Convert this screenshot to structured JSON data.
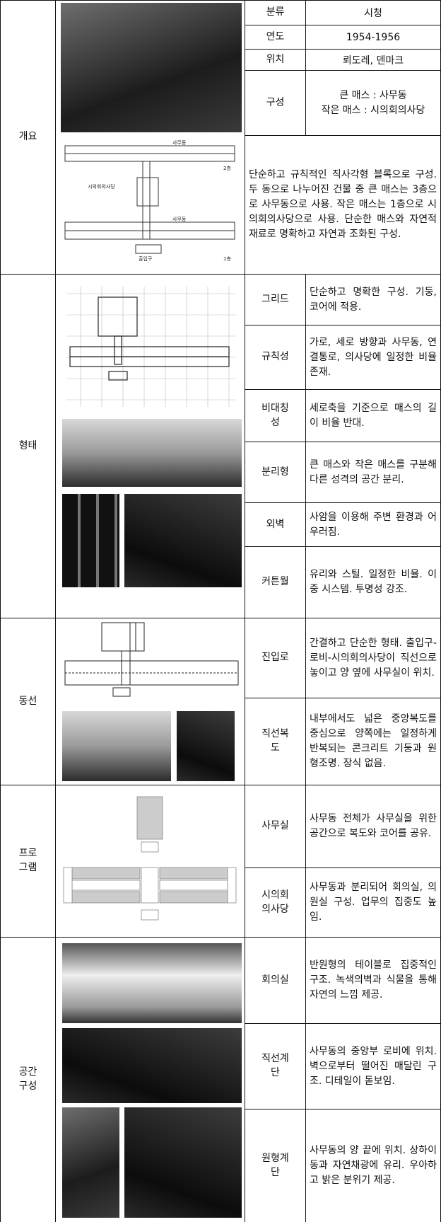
{
  "overview": {
    "section": "개요",
    "rows": [
      {
        "label": "분류",
        "value": "시청"
      },
      {
        "label": "연도",
        "value": "1954-1956"
      },
      {
        "label": "위치",
        "value": "뢰도레, 덴마크"
      },
      {
        "label": "구성",
        "value": [
          "큰 매스 : 사무동",
          "작은 매스 : 시의회의사당"
        ]
      }
    ],
    "plan_labels": [
      "사무동",
      "시의회의사당",
      "2층",
      "사무동",
      "출입구",
      "1층"
    ],
    "description": "단순하고 규칙적인 직사각형 블록으로 구성. 두 동으로 나누어진 건물 중 큰 매스는 3층으로 사무동으로 사용. 작은 매스는 1층으로 시의회의사당으로 사용. 단순한 매스와 자연적 재료로 명확하고 자연과 조화된 구성."
  },
  "sections": [
    {
      "title": "형태",
      "rows": [
        {
          "label": "그리드",
          "text": "단순하고 명확한 구성. 기둥, 코어에 적용."
        },
        {
          "label": "규칙성",
          "text": "가로, 세로 방향과 사무동, 연결통로, 의사당에 일정한 비율존재."
        },
        {
          "label": "비대칭성",
          "text": "세로축을 기준으로 매스의 길이 비율 반대."
        },
        {
          "label": "분리형",
          "text": "큰 매스와 작은 매스를 구분해 다른 성격의 공간 분리."
        },
        {
          "label": "외벽",
          "text": "사암을 이용해 주변 환경과 어우러짐."
        },
        {
          "label": "커튼월",
          "text": "유리와 스틸. 일정한 비율. 이중 시스템. 투명성 강조."
        }
      ]
    },
    {
      "title": "동선",
      "rows": [
        {
          "label": "진입로",
          "text": "간결하고 단순한 형태. 출입구-로비-시의회의사당이 직선으로 놓이고 양 옆에 사무실이 위치."
        },
        {
          "label": "직선복도",
          "text": "내부에서도 넓은 중앙복도를 중심으로 양쪽에는 일정하게 반복되는 콘크리트 기둥과 원형조명. 장식 없음."
        }
      ]
    },
    {
      "title": "프로그램",
      "rows": [
        {
          "label": "사무실",
          "text": "사무동 전체가 사무실을 위한 공간으로 복도와 코어를 공유."
        },
        {
          "label": "시의회의사당",
          "text": "사무동과 분리되어 회의실, 의원실 구성. 업무의 집중도 높임."
        }
      ]
    },
    {
      "title": "공간구성",
      "rows": [
        {
          "label": "회의실",
          "text": "반원형의 테이블로 집중적인 구조. 녹색의벽과 식물을 통해 자연의 느낌 제공."
        },
        {
          "label": "직선계단",
          "text": "사무동의 중앙부 로비에 위치. 벽으로부터 떨어진 매달린 구조. 디테일이 돋보임."
        },
        {
          "label": "원형계단",
          "text": "사무동의 양 끝에 위치. 상하이동과 자연채광에 유리. 우아하고 밝은 분위기 제공."
        }
      ]
    }
  ]
}
